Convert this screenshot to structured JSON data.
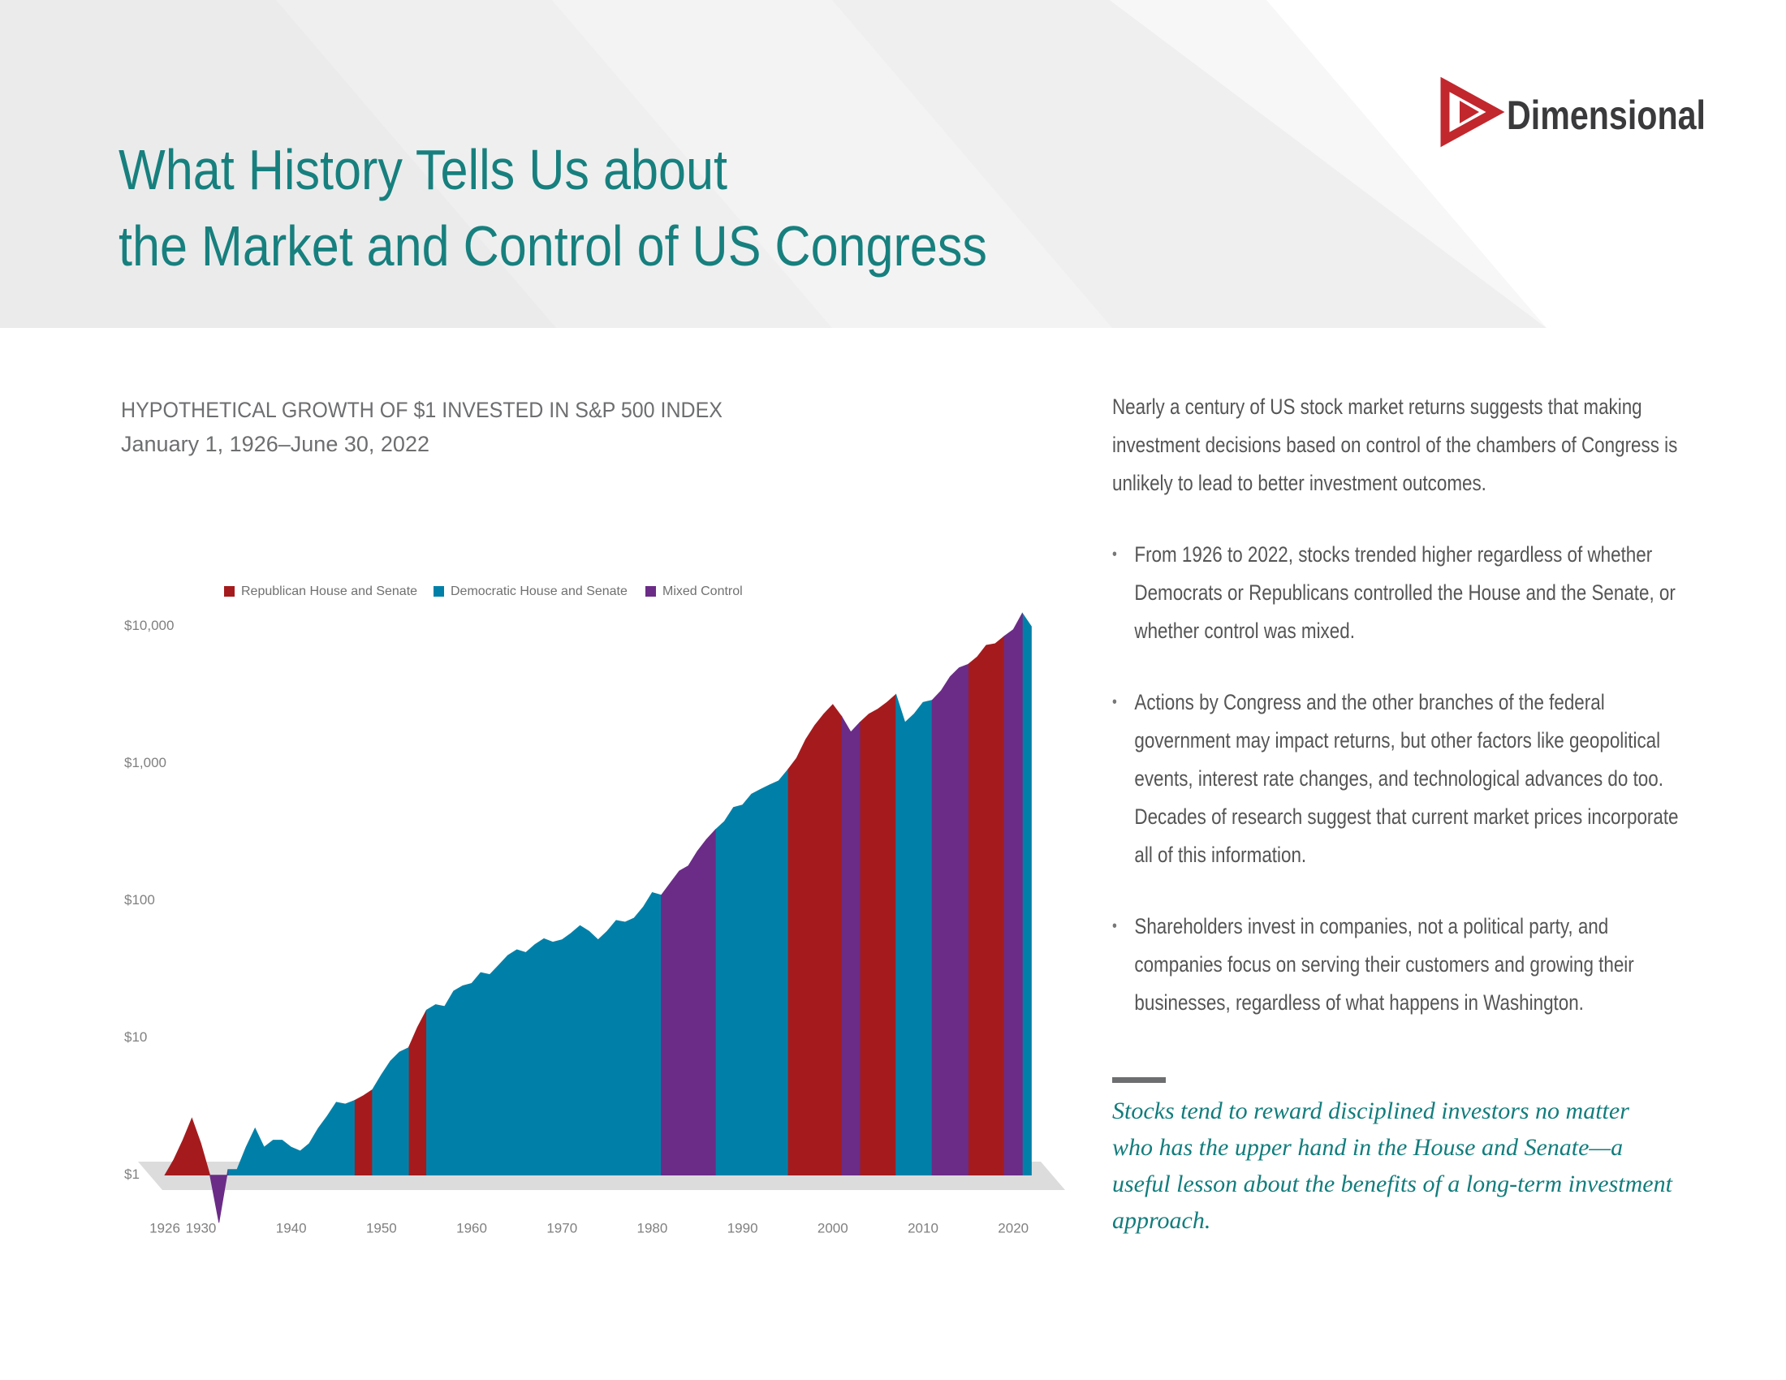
{
  "header": {
    "title": [
      "What History Tells Us about",
      "the Market and Control of US Congress"
    ],
    "logo": "Dimensional"
  },
  "chart_data": {
    "type": "area",
    "title": "HYPOTHETICAL GROWTH OF $1 INVESTED IN S&P 500 INDEX",
    "subtitle": "January 1, 1926–June 30, 2022",
    "log_y": true,
    "x": [
      1926,
      1927,
      1928,
      1929,
      1930,
      1931,
      1932,
      1933,
      1934,
      1935,
      1936,
      1937,
      1938,
      1939,
      1940,
      1941,
      1942,
      1943,
      1944,
      1945,
      1946,
      1947,
      1948,
      1949,
      1950,
      1951,
      1952,
      1953,
      1954,
      1955,
      1956,
      1957,
      1958,
      1959,
      1960,
      1961,
      1962,
      1963,
      1964,
      1965,
      1966,
      1967,
      1968,
      1969,
      1970,
      1971,
      1972,
      1973,
      1974,
      1975,
      1976,
      1977,
      1978,
      1979,
      1980,
      1981,
      1982,
      1983,
      1984,
      1985,
      1986,
      1987,
      1988,
      1989,
      1990,
      1991,
      1992,
      1993,
      1994,
      1995,
      1996,
      1997,
      1998,
      1999,
      2000,
      2001,
      2002,
      2003,
      2004,
      2005,
      2006,
      2007,
      2008,
      2009,
      2010,
      2011,
      2012,
      2013,
      2014,
      2015,
      2016,
      2017,
      2018,
      2019,
      2020,
      2021,
      2022
    ],
    "series": [
      {
        "name": "Republican House and Senate",
        "color": "#a51b1d",
        "values": [
          1.0,
          1.3,
          1.8,
          2.6,
          1.7,
          1.0,
          null,
          null,
          null,
          null,
          null,
          null,
          null,
          null,
          null,
          null,
          null,
          null,
          null,
          null,
          null,
          3.5,
          3.8,
          4.2,
          null,
          null,
          null,
          8.5,
          12,
          16,
          null,
          null,
          null,
          null,
          null,
          null,
          null,
          null,
          null,
          null,
          null,
          null,
          null,
          null,
          null,
          null,
          null,
          null,
          null,
          null,
          null,
          null,
          null,
          null,
          null,
          null,
          null,
          null,
          null,
          null,
          null,
          null,
          null,
          null,
          null,
          null,
          null,
          null,
          null,
          900,
          1100,
          1500,
          1900,
          2300,
          2700,
          2200,
          null,
          2000,
          2300,
          2500,
          2800,
          3200,
          null,
          null,
          null,
          null,
          null,
          null,
          null,
          5300,
          6000,
          7300,
          7500,
          8500,
          null,
          null,
          null
        ]
      },
      {
        "name": "Democratic House and Senate",
        "color": "#0080a8",
        "values": [
          null,
          null,
          null,
          null,
          null,
          null,
          null,
          1.1,
          1.1,
          1.6,
          2.2,
          1.6,
          1.8,
          1.8,
          1.6,
          1.5,
          1.7,
          2.2,
          2.7,
          3.4,
          3.3,
          3.5,
          null,
          4.2,
          5.4,
          6.8,
          7.9,
          8.5,
          null,
          16,
          17.5,
          17,
          22,
          24,
          25,
          30,
          29,
          34,
          40,
          44,
          42,
          48,
          53,
          50,
          52,
          58,
          66,
          60,
          52,
          60,
          72,
          70,
          75,
          90,
          115,
          110,
          null,
          null,
          null,
          null,
          null,
          330,
          380,
          480,
          500,
          600,
          650,
          700,
          750,
          900,
          null,
          null,
          null,
          null,
          null,
          null,
          null,
          null,
          null,
          null,
          null,
          3200,
          2000,
          2300,
          2800,
          2900,
          null,
          null,
          null,
          null,
          null,
          null,
          null,
          null,
          null,
          12500,
          10000
        ]
      },
      {
        "name": "Mixed Control",
        "color": "#6b2c87",
        "values": [
          null,
          null,
          null,
          null,
          null,
          1.0,
          0.45,
          1.1,
          null,
          null,
          null,
          null,
          null,
          null,
          null,
          null,
          null,
          null,
          null,
          null,
          null,
          null,
          null,
          null,
          null,
          null,
          null,
          null,
          null,
          null,
          null,
          null,
          null,
          null,
          null,
          null,
          null,
          null,
          null,
          null,
          null,
          null,
          null,
          null,
          null,
          null,
          null,
          null,
          null,
          null,
          null,
          null,
          null,
          null,
          null,
          110,
          135,
          165,
          180,
          230,
          280,
          330,
          null,
          null,
          null,
          null,
          null,
          null,
          null,
          null,
          null,
          null,
          null,
          null,
          null,
          2200,
          1700,
          2000,
          null,
          null,
          null,
          null,
          null,
          null,
          null,
          2900,
          3400,
          4300,
          5000,
          5300,
          null,
          null,
          null,
          8500,
          9500,
          12500,
          null
        ]
      }
    ],
    "xlim": [
      1926,
      2022.5
    ],
    "xticks": [
      1926,
      1930,
      1940,
      1950,
      1960,
      1970,
      1980,
      1990,
      2000,
      2010,
      2020
    ],
    "ylim": [
      0.3,
      15000
    ],
    "yticks": [
      {
        "value": 1,
        "label": "$1"
      },
      {
        "value": 10,
        "label": "$10"
      },
      {
        "value": 100,
        "label": "$100"
      },
      {
        "value": 1000,
        "label": "$1,000"
      },
      {
        "value": 10000,
        "label": "$10,000"
      }
    ],
    "grid": false
  },
  "body": {
    "intro": "Nearly a century of US stock market returns suggests that making investment decisions based on control of the chambers of Congress is unlikely to lead to better investment outcomes.",
    "bullets": [
      "From 1926 to 2022, stocks trended higher regardless of whether Democrats or Republicans controlled the House and the Senate, or whether control was mixed.",
      "Actions by Congress and the other branches of the federal government may impact returns, but other factors like geopolitical events, interest rate changes, and technological advances do too. Decades of research suggest that current market prices incorporate all of this information.",
      "Shareholders invest in companies, not a political party, and companies focus on serving their customers and growing their businesses, regardless of what happens in Washington."
    ],
    "quote": "Stocks tend to reward disciplined investors no matter who has the upper hand in the House and Senate—a useful lesson about the benefits of a long-term investment approach."
  }
}
